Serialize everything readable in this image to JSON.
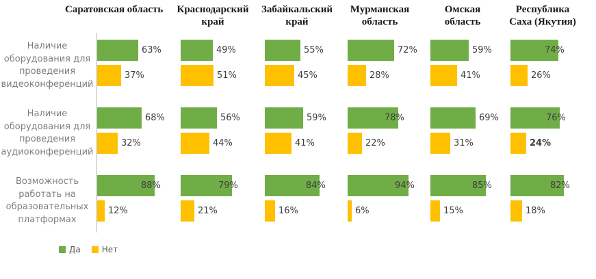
{
  "colors": {
    "yes": "#70AD47",
    "no": "#FFC000",
    "value_label": "#404040",
    "row_label": "#7F7F7F",
    "header_text": "#1A1A1A",
    "axis_line": "#D9D9D9",
    "legend_text": "#595959"
  },
  "column_header_lines": [
    [
      "Саратовская область"
    ],
    [
      "Краснодарский",
      "край"
    ],
    [
      "Забайкальский",
      "край"
    ],
    [
      "Мурманская",
      "область"
    ],
    [
      "Омская",
      "область"
    ],
    [
      "Республика",
      "Саха (Якутия)"
    ]
  ],
  "row_label_lines": [
    [
      "Наличие",
      "оборудования для",
      "проведения",
      "видеоконференций"
    ],
    [
      "Наличие",
      "оборудования для",
      "проведения",
      "аудиоконференций"
    ],
    [
      "Возможность",
      "работать на",
      "образовательных",
      "платформах"
    ]
  ],
  "chart_data": {
    "type": "bar",
    "orientation": "horizontal",
    "unit": "%",
    "title": "",
    "xlim": [
      0,
      100
    ],
    "grid": false,
    "legend_position": "bottom-left",
    "columns": [
      "Саратовская область",
      "Краснодарский край",
      "Забайкальский край",
      "Мурманская область",
      "Омская область",
      "Республика Саха (Якутия)"
    ],
    "categories": [
      "Наличие оборудования для проведения видеоконференций",
      "Наличие оборудования для проведения аудиоконференций",
      "Возможность работать на образовательных платформах"
    ],
    "series": [
      {
        "name": "Да",
        "color": "#70AD47",
        "values": [
          [
            63,
            49,
            55,
            72,
            59,
            74
          ],
          [
            68,
            56,
            59,
            78,
            69,
            76
          ],
          [
            88,
            79,
            84,
            94,
            85,
            82
          ]
        ]
      },
      {
        "name": "Нет",
        "color": "#FFC000",
        "values": [
          [
            37,
            51,
            45,
            28,
            41,
            26
          ],
          [
            32,
            44,
            41,
            22,
            31,
            24
          ],
          [
            12,
            21,
            16,
            6,
            15,
            18
          ]
        ]
      }
    ],
    "data_label_format": "{value}%",
    "bold_value_labels": [
      {
        "series": "Нет",
        "row": 1,
        "col": 5,
        "text": "24%"
      }
    ]
  },
  "legend": {
    "yes_label": "Да",
    "no_label": "Нет"
  }
}
